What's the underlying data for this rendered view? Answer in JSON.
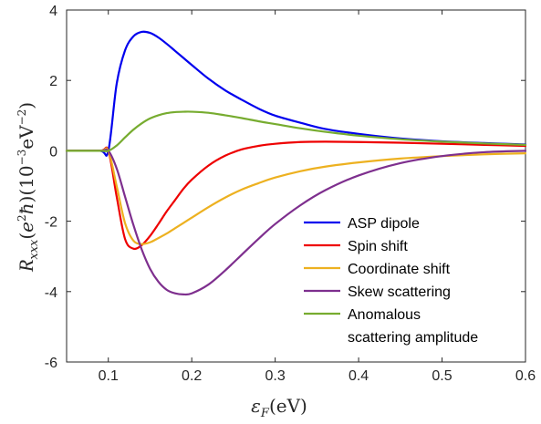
{
  "chart_data": {
    "type": "line",
    "title": "",
    "xlabel": "ε_F(eV)",
    "ylabel": "R_xxx(e²ħ)(10⁻³eV⁻²)",
    "xlim": [
      0.05,
      0.6
    ],
    "ylim": [
      -6,
      4
    ],
    "x_ticks": [
      0.1,
      0.2,
      0.3,
      0.4,
      0.5,
      0.6
    ],
    "x_tick_labels": [
      "0.1",
      "0.2",
      "0.3",
      "0.4",
      "0.5",
      "0.6"
    ],
    "y_ticks": [
      -6,
      -4,
      -2,
      0,
      2,
      4
    ],
    "y_tick_labels": [
      "-6",
      "-4",
      "-2",
      "0",
      "2",
      "4"
    ],
    "grid": false,
    "legend_position": "bottom-right",
    "x": [
      0.05,
      0.09,
      0.1,
      0.11,
      0.12,
      0.13,
      0.14,
      0.15,
      0.16,
      0.17,
      0.18,
      0.19,
      0.2,
      0.22,
      0.24,
      0.26,
      0.28,
      0.3,
      0.33,
      0.36,
      0.4,
      0.45,
      0.5,
      0.55,
      0.6
    ],
    "series": [
      {
        "name": "ASP dipole",
        "color": "#0000ee",
        "values": [
          0,
          0,
          0,
          1.9,
          2.85,
          3.25,
          3.38,
          3.35,
          3.22,
          3.04,
          2.84,
          2.64,
          2.44,
          2.05,
          1.72,
          1.45,
          1.2,
          1.0,
          0.8,
          0.62,
          0.48,
          0.35,
          0.27,
          0.22,
          0.18
        ]
      },
      {
        "name": "Spin shift",
        "color": "#ee0000",
        "values": [
          0,
          0,
          0,
          -1.3,
          -2.5,
          -2.78,
          -2.68,
          -2.42,
          -2.08,
          -1.72,
          -1.4,
          -1.08,
          -0.82,
          -0.42,
          -0.14,
          0.04,
          0.14,
          0.2,
          0.25,
          0.26,
          0.25,
          0.23,
          0.2,
          0.17,
          0.14
        ]
      },
      {
        "name": "Coordinate shift",
        "color": "#edb120",
        "values": [
          0,
          0,
          0,
          -1.0,
          -2.05,
          -2.55,
          -2.65,
          -2.6,
          -2.48,
          -2.35,
          -2.2,
          -2.05,
          -1.9,
          -1.6,
          -1.33,
          -1.1,
          -0.92,
          -0.76,
          -0.58,
          -0.45,
          -0.33,
          -0.22,
          -0.15,
          -0.1,
          -0.07
        ]
      },
      {
        "name": "Skew scattering",
        "color": "#7e2f8e",
        "values": [
          0,
          0,
          0,
          -0.5,
          -1.3,
          -2.1,
          -2.8,
          -3.35,
          -3.72,
          -3.95,
          -4.05,
          -4.08,
          -4.05,
          -3.8,
          -3.4,
          -2.95,
          -2.5,
          -2.08,
          -1.55,
          -1.12,
          -0.7,
          -0.35,
          -0.15,
          -0.04,
          0.0
        ]
      },
      {
        "name": "Anomalous scattering amplitude",
        "legend_lines": [
          "Anomalous",
          "scattering amplitude"
        ],
        "color": "#77ac30",
        "values": [
          0,
          0,
          0,
          0.15,
          0.38,
          0.6,
          0.78,
          0.92,
          1.01,
          1.07,
          1.1,
          1.11,
          1.11,
          1.08,
          1.01,
          0.93,
          0.84,
          0.76,
          0.64,
          0.54,
          0.43,
          0.33,
          0.26,
          0.21,
          0.17
        ]
      }
    ]
  }
}
